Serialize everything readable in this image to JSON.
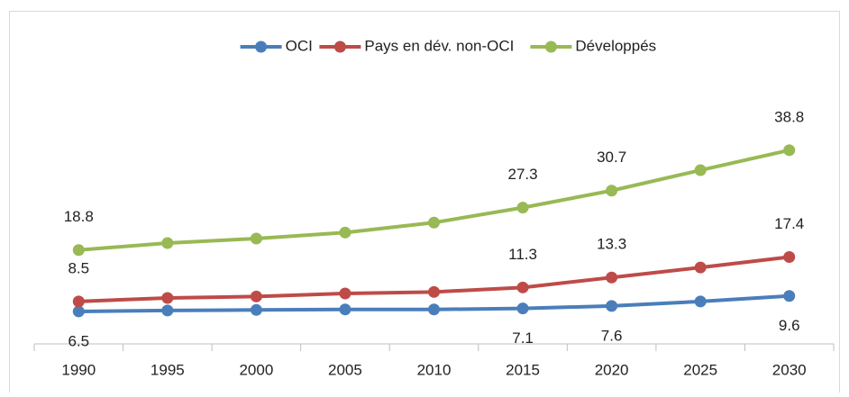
{
  "chart_data": {
    "type": "line",
    "categories": [
      "1990",
      "1995",
      "2000",
      "2005",
      "2010",
      "2015",
      "2020",
      "2025",
      "2030"
    ],
    "series": [
      {
        "name": "OCI",
        "color": "#4a7ebb",
        "values": [
          6.5,
          6.7,
          6.8,
          6.9,
          6.9,
          7.1,
          7.6,
          8.5,
          9.6
        ],
        "label_position": "below"
      },
      {
        "name": "Pays en dév. non-OCI",
        "color": "#be4b48",
        "values": [
          8.5,
          9.2,
          9.5,
          10.1,
          10.4,
          11.3,
          13.3,
          15.3,
          17.4
        ],
        "label_position": "above"
      },
      {
        "name": "Développés",
        "color": "#98b954",
        "values": [
          18.8,
          20.2,
          21.1,
          22.3,
          24.3,
          27.3,
          30.7,
          34.8,
          38.8
        ],
        "label_position": "above"
      }
    ],
    "labeled_points": [
      0,
      5,
      6,
      8
    ],
    "ylim": [
      0,
      55
    ],
    "legend": "top"
  }
}
